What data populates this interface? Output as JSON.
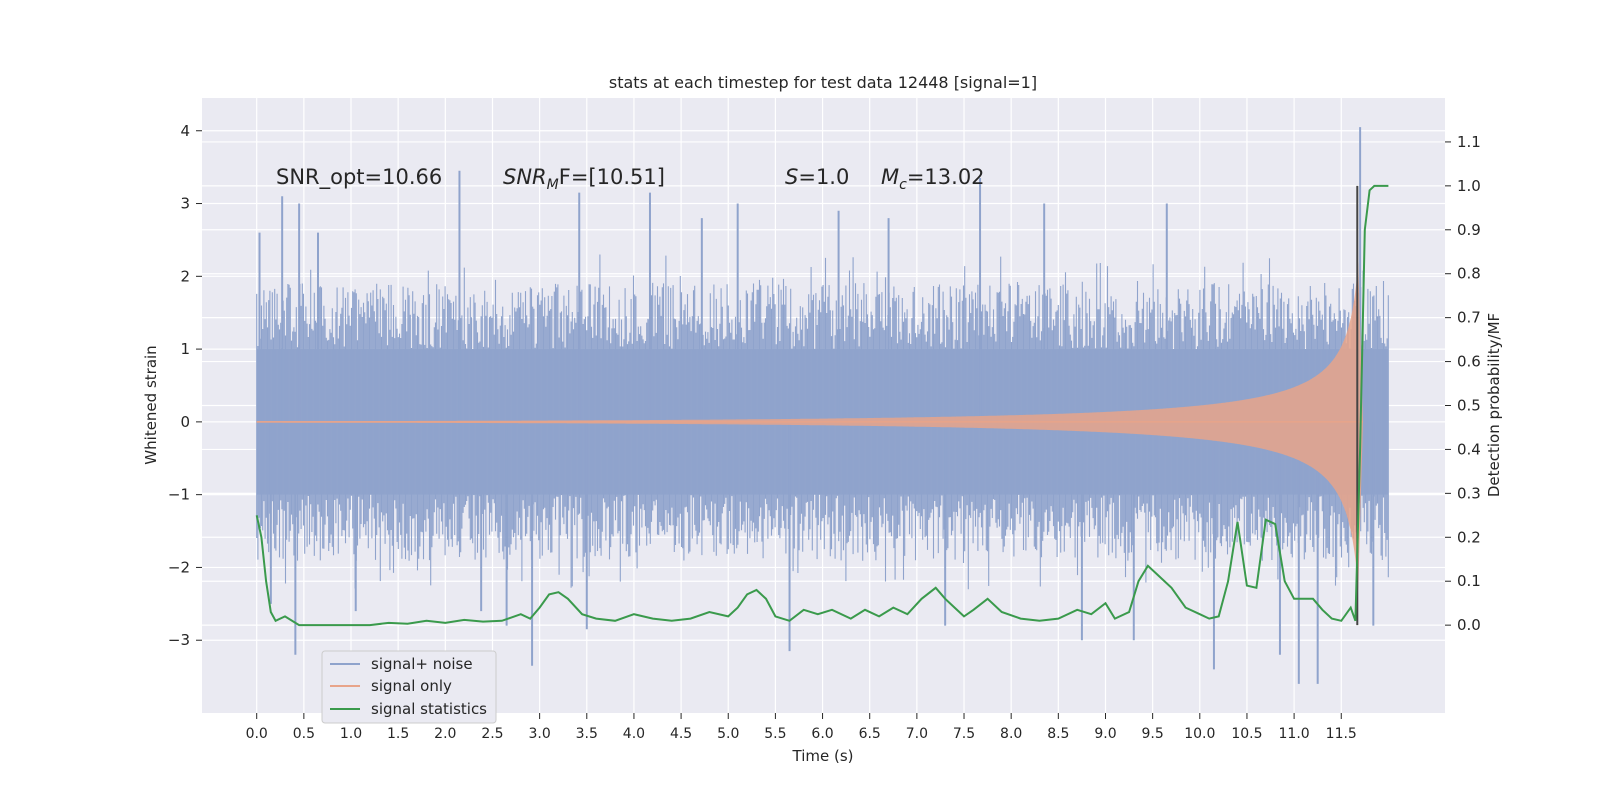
{
  "chart_data": {
    "type": "line",
    "title": "stats at each timestep for test data 12448 [signal=1]",
    "xlabel": "Time (s)",
    "ylabel": "Whitened strain",
    "y2label": "Detection probability/MF",
    "xlim": [
      -0.58,
      12.6
    ],
    "ylim": [
      -4.0,
      4.45
    ],
    "y2lim": [
      -0.2,
      1.2
    ],
    "x_ticks": [
      "0.0",
      "0.5",
      "1.0",
      "1.5",
      "2.0",
      "2.5",
      "3.0",
      "3.5",
      "4.0",
      "4.5",
      "5.0",
      "5.5",
      "6.0",
      "6.5",
      "7.0",
      "7.5",
      "8.0",
      "8.5",
      "9.0",
      "9.5",
      "10.0",
      "10.5",
      "11.0",
      "11.5"
    ],
    "x_tick_values": [
      0,
      0.5,
      1,
      1.5,
      2,
      2.5,
      3,
      3.5,
      4,
      4.5,
      5,
      5.5,
      6,
      6.5,
      7,
      7.5,
      8,
      8.5,
      9,
      9.5,
      10,
      10.5,
      11,
      11.5
    ],
    "y_ticks": [
      "4",
      "3",
      "2",
      "1",
      "0",
      "−1",
      "−2",
      "−3"
    ],
    "y_tick_values": [
      4,
      3,
      2,
      1,
      0,
      -1,
      -2,
      -3
    ],
    "y2_ticks": [
      "1.1",
      "1.0",
      "0.9",
      "0.8",
      "0.7",
      "0.6",
      "0.5",
      "0.4",
      "0.3",
      "0.2",
      "0.1",
      "0.0"
    ],
    "y2_tick_values": [
      1.1,
      1.0,
      0.9,
      0.8,
      0.7,
      0.6,
      0.5,
      0.4,
      0.3,
      0.2,
      0.1,
      0.0
    ],
    "grid": true,
    "legend_position": "bottom-left",
    "annotations": {
      "snr_opt": "SNR_opt=10.66",
      "snr_mf_base": "SNR",
      "snr_mf_sub": "M",
      "snr_mf_rest": "F=[10.51]",
      "s_base": "S",
      "s_rest": "=1.0",
      "mc_base": "M",
      "mc_sub": "c",
      "mc_rest": "=13.02"
    },
    "series": [
      {
        "name": "signal+ noise",
        "color": "#8fa3cc",
        "noise_envelope": {
          "x_start": 0.0,
          "x_end": 12.0,
          "lower": -2.3,
          "upper": 2.3
        },
        "spikes": [
          {
            "x": 0.03,
            "y": 2.6
          },
          {
            "x": 0.15,
            "y": -2.5
          },
          {
            "x": 0.27,
            "y": 3.1
          },
          {
            "x": 0.41,
            "y": -3.2
          },
          {
            "x": 0.45,
            "y": 3.0
          },
          {
            "x": 0.65,
            "y": 2.6
          },
          {
            "x": 1.05,
            "y": -2.6
          },
          {
            "x": 2.15,
            "y": 3.45
          },
          {
            "x": 2.38,
            "y": -2.6
          },
          {
            "x": 2.65,
            "y": -2.8
          },
          {
            "x": 2.92,
            "y": -3.35
          },
          {
            "x": 3.42,
            "y": 3.15
          },
          {
            "x": 3.5,
            "y": -2.85
          },
          {
            "x": 4.17,
            "y": 3.15
          },
          {
            "x": 4.72,
            "y": 2.8
          },
          {
            "x": 5.1,
            "y": 3.0
          },
          {
            "x": 5.65,
            "y": -3.15
          },
          {
            "x": 6.17,
            "y": 2.9
          },
          {
            "x": 6.7,
            "y": 2.8
          },
          {
            "x": 7.3,
            "y": -2.8
          },
          {
            "x": 7.67,
            "y": 3.35
          },
          {
            "x": 8.35,
            "y": 3.0
          },
          {
            "x": 8.75,
            "y": -3.0
          },
          {
            "x": 9.3,
            "y": -3.0
          },
          {
            "x": 9.65,
            "y": 3.0
          },
          {
            "x": 10.15,
            "y": -3.4
          },
          {
            "x": 10.85,
            "y": -3.2
          },
          {
            "x": 11.05,
            "y": -3.6
          },
          {
            "x": 11.25,
            "y": -3.6
          },
          {
            "x": 11.7,
            "y": 4.05
          },
          {
            "x": 11.84,
            "y": -2.8
          }
        ]
      },
      {
        "name": "signal only",
        "color": "#e8a48a",
        "chirp": {
          "x_start": 0.0,
          "x_end": 11.73,
          "amp_start": 0.01,
          "amp_end": 2.2,
          "merger_x": 11.68
        }
      },
      {
        "name": "signal statistics",
        "color": "#3a9a4c",
        "axis": "right",
        "x": [
          0.0,
          0.05,
          0.1,
          0.15,
          0.2,
          0.3,
          0.45,
          0.6,
          0.8,
          1.0,
          1.2,
          1.4,
          1.6,
          1.8,
          2.0,
          2.2,
          2.4,
          2.6,
          2.8,
          2.9,
          3.0,
          3.1,
          3.2,
          3.3,
          3.45,
          3.6,
          3.8,
          4.0,
          4.2,
          4.4,
          4.6,
          4.8,
          5.0,
          5.1,
          5.2,
          5.3,
          5.4,
          5.5,
          5.65,
          5.8,
          5.95,
          6.1,
          6.3,
          6.45,
          6.6,
          6.75,
          6.9,
          7.05,
          7.2,
          7.3,
          7.4,
          7.5,
          7.6,
          7.75,
          7.9,
          8.1,
          8.3,
          8.5,
          8.7,
          8.85,
          9.0,
          9.1,
          9.25,
          9.35,
          9.45,
          9.55,
          9.7,
          9.85,
          10.0,
          10.1,
          10.2,
          10.3,
          10.4,
          10.5,
          10.6,
          10.7,
          10.8,
          10.9,
          11.0,
          11.1,
          11.2,
          11.3,
          11.4,
          11.5,
          11.6,
          11.65,
          11.7,
          11.75,
          11.8,
          11.85,
          11.9,
          11.95,
          12.0
        ],
        "y": [
          0.25,
          0.2,
          0.1,
          0.03,
          0.01,
          0.02,
          0.0,
          0.0,
          0.0,
          0.0,
          0.0,
          0.005,
          0.003,
          0.01,
          0.005,
          0.012,
          0.008,
          0.01,
          0.025,
          0.015,
          0.04,
          0.07,
          0.075,
          0.06,
          0.025,
          0.015,
          0.01,
          0.025,
          0.015,
          0.01,
          0.015,
          0.03,
          0.02,
          0.04,
          0.07,
          0.08,
          0.06,
          0.02,
          0.01,
          0.035,
          0.025,
          0.035,
          0.015,
          0.035,
          0.02,
          0.04,
          0.025,
          0.06,
          0.085,
          0.06,
          0.04,
          0.02,
          0.035,
          0.06,
          0.03,
          0.015,
          0.01,
          0.015,
          0.035,
          0.025,
          0.05,
          0.015,
          0.03,
          0.1,
          0.135,
          0.115,
          0.085,
          0.04,
          0.025,
          0.015,
          0.02,
          0.1,
          0.235,
          0.09,
          0.085,
          0.24,
          0.23,
          0.1,
          0.06,
          0.06,
          0.06,
          0.035,
          0.015,
          0.01,
          0.04,
          0.01,
          0.4,
          0.9,
          0.99,
          1.0,
          1.0,
          1.0,
          1.0
        ]
      }
    ],
    "merger_marker_x": 11.67
  }
}
